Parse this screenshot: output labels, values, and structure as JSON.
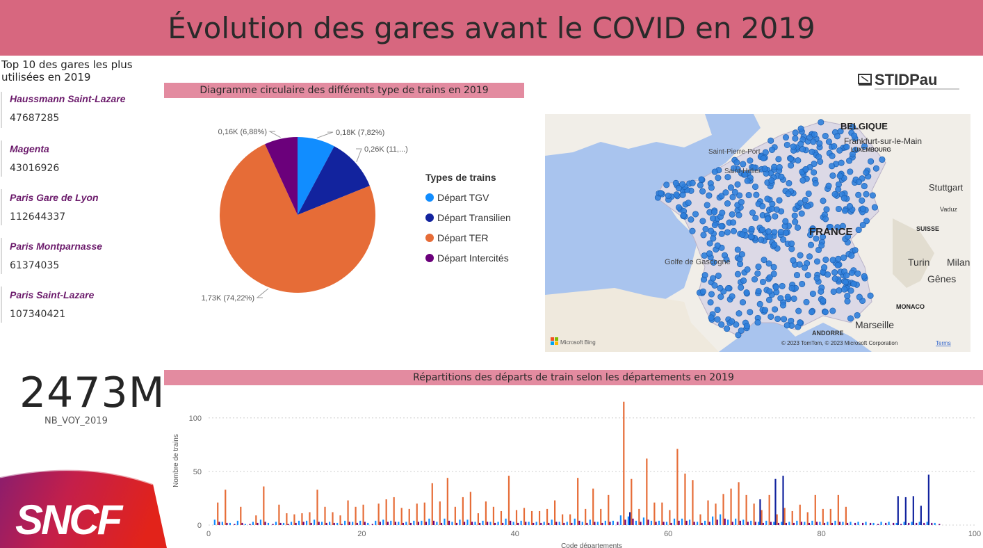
{
  "header": {
    "title": "Évolution des gares avant le COVID en 2019"
  },
  "top_stations": {
    "title_line1": "Top 10 des gares les plus",
    "title_line2": "utilisées en 2019",
    "items": [
      {
        "name": "Haussmann Saint-Lazare",
        "value": "47687285"
      },
      {
        "name": "Magenta",
        "value": "43016926"
      },
      {
        "name": "Paris Gare de Lyon",
        "value": "112644337"
      },
      {
        "name": "Paris Montparnasse",
        "value": "61374035"
      },
      {
        "name": "Paris Saint-Lazare",
        "value": "107340421"
      }
    ]
  },
  "kpi": {
    "value": "2473M",
    "label": "NB_VOY_2019"
  },
  "logos": {
    "sncf": "SNCF",
    "stid_main": "STIDPau"
  },
  "map": {
    "labels": [
      "BELGIQUE",
      "Frankfurt-sur-le-Main",
      "LUXEMBOURG",
      "Saint-Pierre-Port",
      "Saint-Helier",
      "Stuttgart",
      "Vaduz",
      "SUISSE",
      "FRANCE",
      "Golfe de Gascogne",
      "Turin",
      "Milan",
      "Gênes",
      "MONACO",
      "Marseille",
      "ANDORRE"
    ],
    "attribution": "© 2023 TomTom, © 2023 Microsoft Corporation",
    "terms": "Terms",
    "provider": "Microsoft Bing",
    "colors": {
      "sea": "#a9c4ee",
      "land": "#f1eee8",
      "france": "#dcd9e6",
      "point": "#2f7fdc"
    }
  },
  "pie": {
    "title": "Diagramme circulaire des différents type de trains en 2019",
    "legend_title": "Types de trains"
  },
  "bar": {
    "title": "Répartitions des départs de train selon les départements en 2019"
  },
  "chart_data": [
    {
      "type": "pie",
      "title": "Diagramme circulaire des différents type de trains en 2019",
      "legend_title": "Types de trains",
      "slices": [
        {
          "name": "Départ TGV",
          "value": 0.18,
          "percent": 7.82,
          "label": "0,18K (7,82%)",
          "color": "#118dff"
        },
        {
          "name": "Départ Transilien",
          "value": 0.26,
          "percent": 11.08,
          "label": "0,26K (11,...)",
          "color": "#12239e"
        },
        {
          "name": "Départ TER",
          "value": 1.73,
          "percent": 74.22,
          "label": "1,73K (74,22%)",
          "color": "#e66c37"
        },
        {
          "name": "Départ Intercités",
          "value": 0.16,
          "percent": 6.88,
          "label": "0,16K (6,88%)",
          "color": "#6b007b"
        }
      ]
    },
    {
      "type": "bar",
      "title": "Répartitions des départs de train selon les départements en 2019",
      "xlabel": "Code départements",
      "ylabel": "Nombre de trains",
      "xlim": [
        0,
        100
      ],
      "ylim": [
        0,
        120
      ],
      "xticks": [
        0,
        20,
        40,
        60,
        80,
        100
      ],
      "yticks": [
        0,
        50,
        100
      ],
      "series_colors": {
        "Départ TGV": "#118dff",
        "Départ Transilien": "#12239e",
        "Départ TER": "#e66c37",
        "Départ Intercités": "#6b007b"
      },
      "x": [
        1,
        2,
        3,
        4,
        5,
        6,
        7,
        8,
        9,
        10,
        11,
        12,
        13,
        14,
        15,
        16,
        17,
        18,
        19,
        20,
        21,
        22,
        23,
        24,
        25,
        26,
        27,
        28,
        29,
        30,
        31,
        32,
        33,
        34,
        35,
        36,
        37,
        38,
        39,
        40,
        41,
        42,
        43,
        44,
        45,
        46,
        47,
        48,
        49,
        50,
        51,
        52,
        53,
        54,
        55,
        56,
        57,
        58,
        59,
        60,
        61,
        62,
        63,
        64,
        65,
        66,
        67,
        68,
        69,
        70,
        71,
        72,
        73,
        74,
        75,
        76,
        77,
        78,
        79,
        80,
        81,
        82,
        83,
        84,
        85,
        86,
        87,
        88,
        89,
        90,
        91,
        92,
        93,
        94,
        95
      ],
      "series": [
        {
          "name": "Départ TER",
          "values": [
            21,
            33,
            0,
            17,
            0,
            9,
            36,
            0,
            19,
            11,
            10,
            11,
            12,
            33,
            17,
            12,
            9,
            23,
            17,
            19,
            0,
            20,
            24,
            26,
            16,
            15,
            20,
            21,
            39,
            22,
            44,
            17,
            26,
            31,
            11,
            22,
            17,
            13,
            46,
            14,
            16,
            13,
            13,
            15,
            23,
            10,
            10,
            44,
            15,
            34,
            15,
            28,
            0,
            115,
            43,
            15,
            62,
            21,
            21,
            14,
            71,
            48,
            42,
            10,
            23,
            20,
            29,
            34,
            40,
            28,
            20,
            14,
            28,
            10,
            16,
            13,
            19,
            12,
            28,
            15,
            15,
            28,
            17,
            0,
            0,
            0,
            0,
            0,
            0,
            0,
            0,
            0,
            0,
            0,
            0
          ]
        },
        {
          "name": "Départ Transilien",
          "values": [
            0,
            0,
            0,
            0,
            0,
            0,
            0,
            0,
            0,
            0,
            0,
            0,
            0,
            0,
            0,
            0,
            0,
            0,
            0,
            0,
            0,
            0,
            0,
            0,
            0,
            0,
            0,
            0,
            0,
            0,
            0,
            0,
            0,
            0,
            0,
            0,
            0,
            0,
            0,
            0,
            0,
            0,
            0,
            0,
            0,
            0,
            0,
            0,
            0,
            0,
            0,
            0,
            0,
            0,
            12,
            0,
            0,
            0,
            0,
            0,
            0,
            0,
            0,
            0,
            0,
            0,
            0,
            0,
            0,
            0,
            0,
            24,
            0,
            43,
            46,
            0,
            0,
            0,
            0,
            0,
            0,
            0,
            0,
            0,
            0,
            0,
            0,
            0,
            0,
            27,
            26,
            27,
            18,
            47,
            0
          ]
        },
        {
          "name": "Départ TGV",
          "values": [
            5,
            3,
            2,
            4,
            1,
            3,
            5,
            2,
            3,
            2,
            3,
            4,
            4,
            5,
            3,
            3,
            2,
            4,
            3,
            4,
            2,
            4,
            5,
            4,
            3,
            3,
            4,
            4,
            6,
            3,
            6,
            3,
            5,
            5,
            3,
            4,
            3,
            3,
            6,
            3,
            4,
            3,
            3,
            3,
            5,
            3,
            3,
            6,
            3,
            5,
            3,
            4,
            4,
            9,
            8,
            4,
            7,
            4,
            4,
            3,
            6,
            6,
            5,
            3,
            4,
            8,
            10,
            5,
            6,
            5,
            4,
            3,
            4,
            3,
            3,
            3,
            4,
            3,
            4,
            3,
            3,
            4,
            3,
            3,
            3,
            3,
            2,
            3,
            3,
            2,
            3,
            3,
            3,
            3,
            2
          ]
        },
        {
          "name": "Départ Intercités",
          "values": [
            3,
            2,
            1,
            2,
            1,
            2,
            3,
            1,
            2,
            1,
            2,
            3,
            2,
            3,
            2,
            2,
            1,
            3,
            2,
            3,
            1,
            3,
            3,
            3,
            2,
            2,
            3,
            3,
            4,
            2,
            4,
            2,
            3,
            3,
            2,
            3,
            2,
            2,
            4,
            2,
            3,
            2,
            2,
            2,
            3,
            2,
            2,
            4,
            2,
            3,
            2,
            3,
            3,
            5,
            6,
            3,
            5,
            3,
            3,
            2,
            4,
            4,
            3,
            2,
            3,
            5,
            6,
            3,
            4,
            3,
            3,
            2,
            3,
            2,
            2,
            2,
            3,
            2,
            3,
            2,
            2,
            3,
            2,
            2,
            2,
            2,
            1,
            2,
            2,
            1,
            2,
            2,
            2,
            2,
            1
          ]
        }
      ]
    }
  ]
}
